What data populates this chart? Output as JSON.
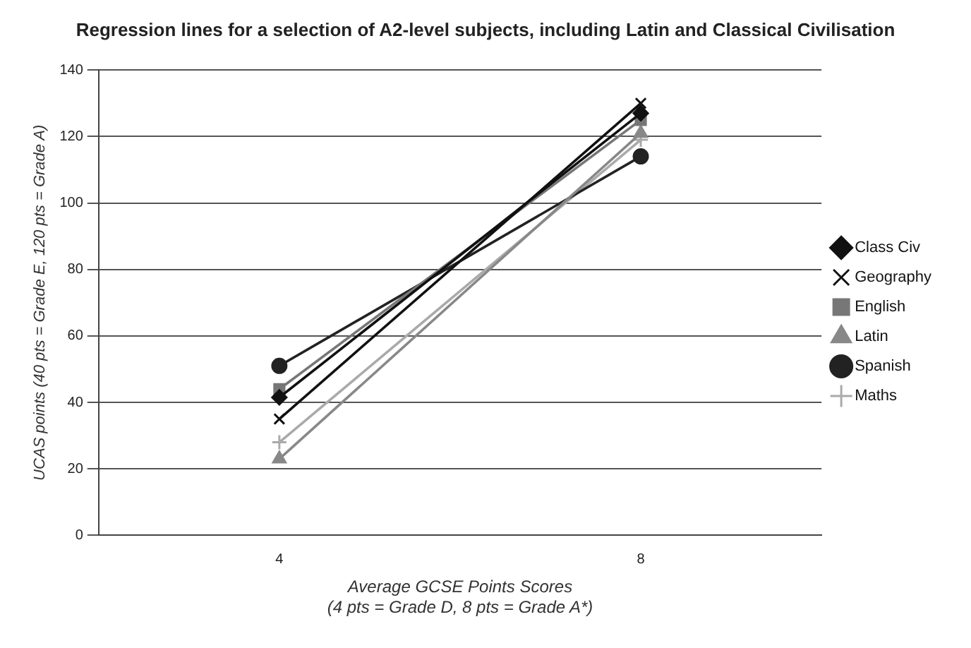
{
  "chart_data": {
    "type": "line",
    "title": "Regression lines for a selection of A2-level subjects, including Latin and Classical Civilisation",
    "xlabel": "Average GCSE Points Scores\n(4 pts = Grade D, 8 pts = Grade A*)",
    "ylabel": "UCAS points (40 pts = Grade E, 120 pts = Grade A)",
    "categories": [
      "4",
      "8"
    ],
    "series": [
      {
        "name": "Class Civ",
        "color": "#111111",
        "marker": "diamond",
        "values": [
          41.5,
          127
        ]
      },
      {
        "name": "Geography",
        "color": "#111111",
        "marker": "cross",
        "values": [
          35,
          130
        ]
      },
      {
        "name": "English",
        "color": "#777777",
        "marker": "square",
        "values": [
          44,
          125
        ]
      },
      {
        "name": "Latin",
        "color": "#888888",
        "marker": "triangle",
        "values": [
          23,
          121
        ]
      },
      {
        "name": "Spanish",
        "color": "#222222",
        "marker": "circle",
        "values": [
          51,
          114
        ]
      },
      {
        "name": "Maths",
        "color": "#aaaaaa",
        "marker": "plus",
        "values": [
          28,
          119
        ]
      }
    ],
    "ylim": [
      0,
      140
    ],
    "yticks": [
      0,
      20,
      40,
      60,
      80,
      100,
      120,
      140
    ],
    "grid": "y",
    "legend": "right"
  }
}
